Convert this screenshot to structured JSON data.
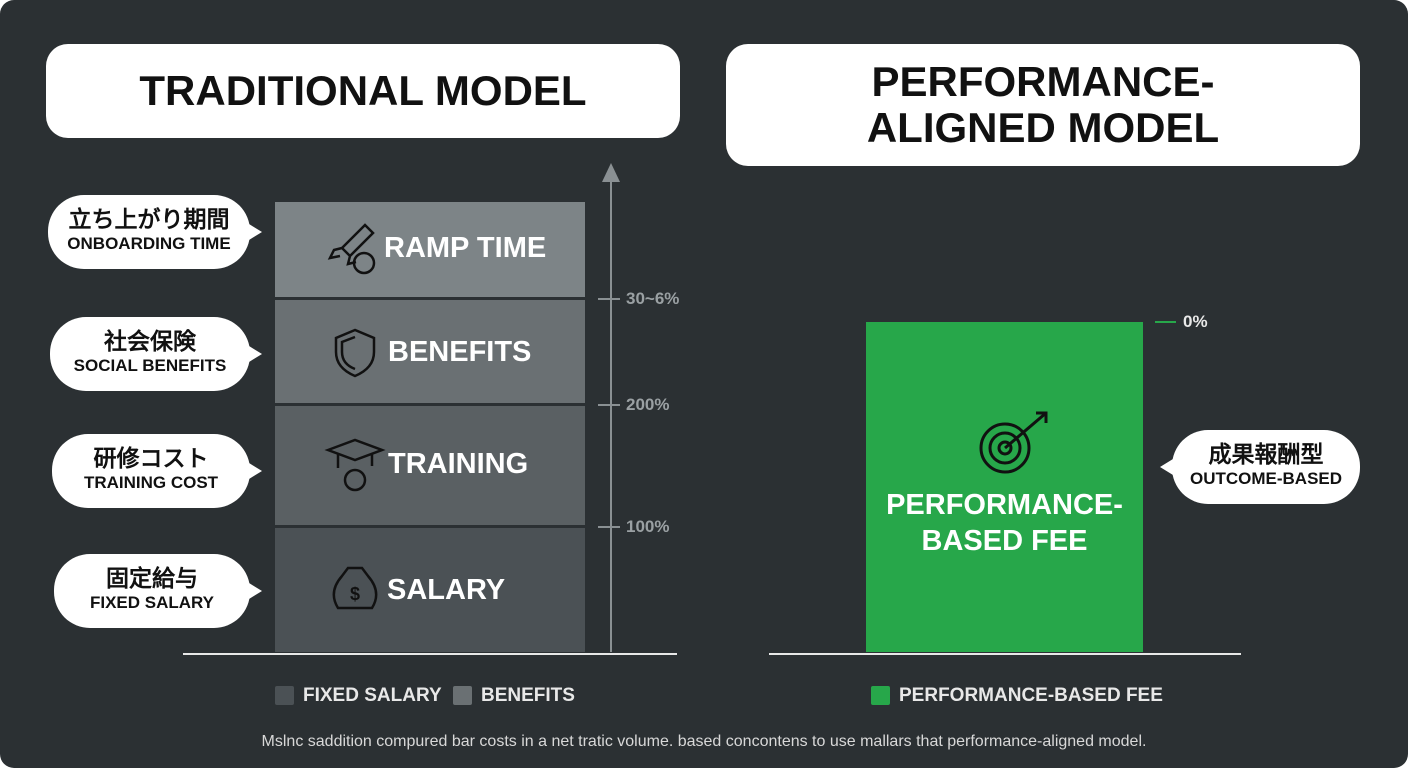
{
  "left": {
    "title": "TRADITIONAL MODEL",
    "blocks": [
      {
        "label": "RAMP TIME",
        "callout_ja": "立ち上がり期間",
        "callout_en": "ONBOARDING TIME"
      },
      {
        "label": "BENEFITS",
        "callout_ja": "社会保険",
        "callout_en": "SOCIAL BENEFITS"
      },
      {
        "label": "TRAINING",
        "callout_ja": "研修コスト",
        "callout_en": "TRAINING COST"
      },
      {
        "label": "SALARY",
        "callout_ja": "固定給与",
        "callout_en": "FIXED SALARY"
      }
    ],
    "axis_ticks": [
      "30~6%",
      "200%",
      "100%"
    ]
  },
  "right": {
    "title": "PERFORMANCE-ALIGNED MODEL",
    "bar_label": "PERFORMANCE-BASED FEE",
    "tick": "0%",
    "callout_ja": "成果報酬型",
    "callout_en": "OUTCOME-BASED"
  },
  "legend": [
    "FIXED SALARY",
    "BENEFITS",
    "PERFORMANCE-BASED FEE"
  ],
  "footnote": "Mslnc saddition compured bar costs in a net tratic volume. based concontens to use mallars that performance-aligned model."
}
